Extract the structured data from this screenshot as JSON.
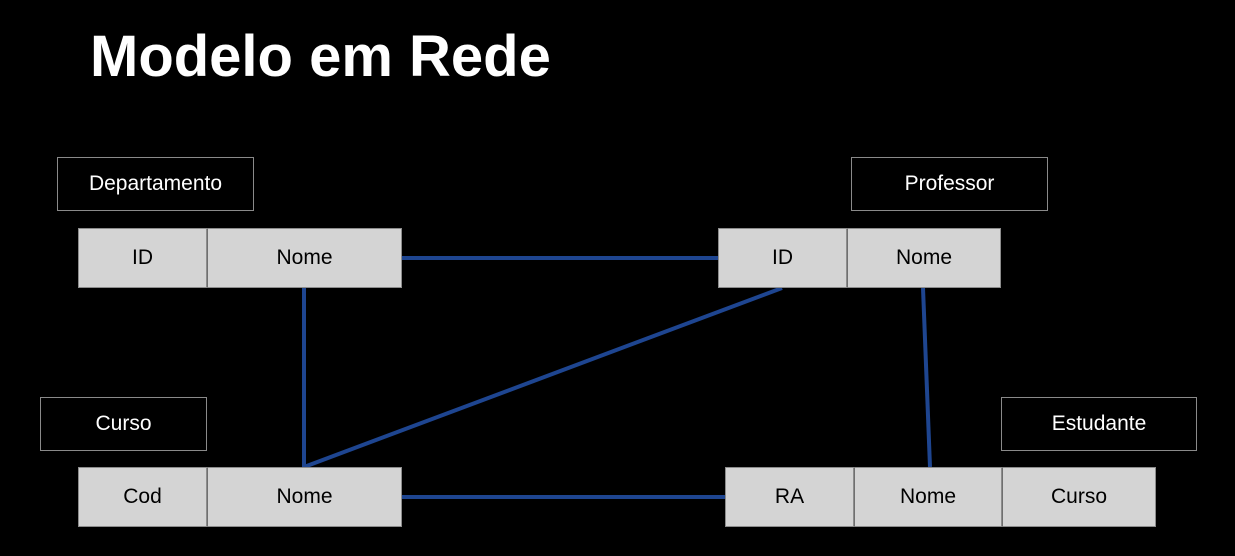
{
  "title": "Modelo em Rede",
  "colors": {
    "background": "#000000",
    "link": "#1e4590",
    "field_fill": "#d4d4d4",
    "label_border": "#8a8a8a"
  },
  "entities": {
    "departamento": {
      "label": "Departamento",
      "fields": [
        "ID",
        "Nome"
      ]
    },
    "professor": {
      "label": "Professor",
      "fields": [
        "ID",
        "Nome"
      ]
    },
    "curso": {
      "label": "Curso",
      "fields": [
        "Cod",
        "Nome"
      ]
    },
    "estudante": {
      "label": "Estudante",
      "fields": [
        "RA",
        "Nome",
        "Curso"
      ]
    }
  }
}
